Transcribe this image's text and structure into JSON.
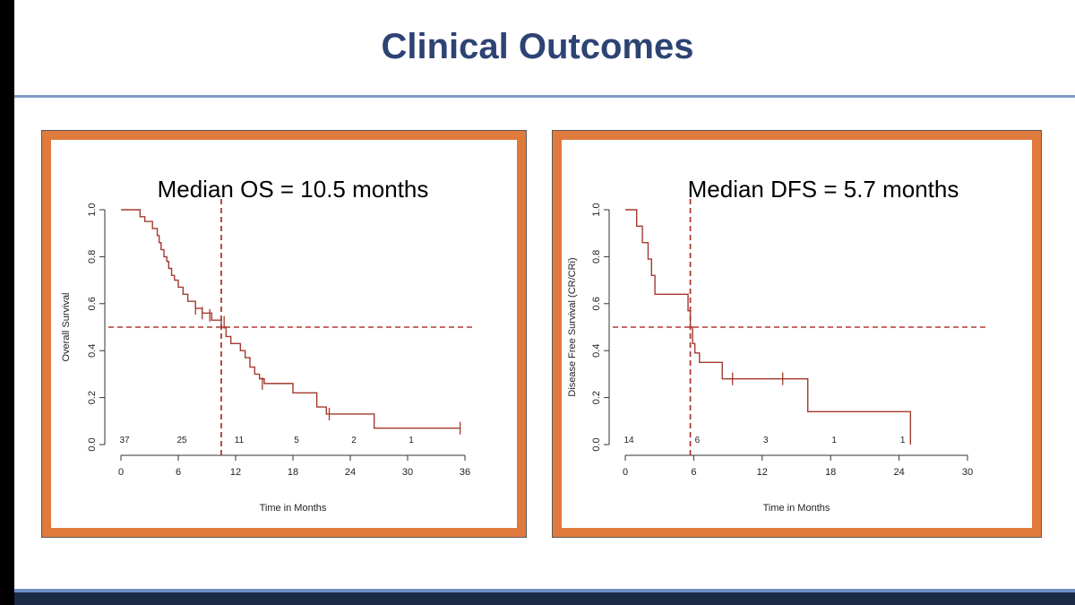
{
  "slide": {
    "title": "Clinical Outcomes"
  },
  "colors": {
    "title": "#2d4373",
    "frame": "#e07a3c",
    "curve": "#a33a2e",
    "median_line": "#b03a32"
  },
  "chart_data": [
    {
      "type": "line",
      "title": "Median OS = 10.5 months",
      "xlabel": "Time in Months",
      "ylabel": "Overall Survival",
      "xlim": [
        0,
        36
      ],
      "ylim": [
        0,
        1
      ],
      "xticks": [
        0,
        6,
        12,
        18,
        24,
        30,
        36
      ],
      "yticks": [
        "0.0",
        "0.2",
        "0.4",
        "0.6",
        "0.8",
        "1.0"
      ],
      "median": 10.5,
      "reference_y": 0.5,
      "at_risk": [
        {
          "x": 0,
          "n": "37"
        },
        {
          "x": 6,
          "n": "25"
        },
        {
          "x": 12,
          "n": "11"
        },
        {
          "x": 18,
          "n": "5"
        },
        {
          "x": 24,
          "n": "2"
        },
        {
          "x": 30,
          "n": "1"
        }
      ],
      "x": [
        0,
        2.0,
        2.5,
        3.3,
        3.8,
        4.0,
        4.2,
        4.5,
        4.8,
        5.0,
        5.3,
        5.6,
        6.0,
        6.5,
        7.0,
        7.8,
        8.5,
        9.5,
        10.5,
        11.0,
        11.5,
        12.5,
        13.0,
        13.5,
        14.0,
        14.5,
        15.0,
        15.5,
        17.0,
        18.0,
        19.5,
        20.5,
        21.5,
        24.0,
        26.5,
        35.5
      ],
      "y": [
        1.0,
        0.97,
        0.95,
        0.92,
        0.89,
        0.86,
        0.83,
        0.8,
        0.78,
        0.75,
        0.72,
        0.7,
        0.67,
        0.64,
        0.61,
        0.58,
        0.56,
        0.53,
        0.5,
        0.46,
        0.43,
        0.4,
        0.37,
        0.33,
        0.3,
        0.28,
        0.26,
        0.26,
        0.26,
        0.22,
        0.22,
        0.16,
        0.13,
        0.13,
        0.07,
        0.07
      ],
      "censor_marks": [
        [
          7.8,
          0.58
        ],
        [
          8.5,
          0.56
        ],
        [
          9.3,
          0.55
        ],
        [
          10.8,
          0.52
        ],
        [
          14.8,
          0.26
        ],
        [
          21.8,
          0.13
        ],
        [
          35.5,
          0.07
        ]
      ]
    },
    {
      "type": "line",
      "title": "Median DFS = 5.7 months",
      "xlabel": "Time in Months",
      "ylabel": "Disease Free Survival (CR/CRi)",
      "xlim": [
        0,
        30
      ],
      "ylim": [
        0,
        1
      ],
      "xticks": [
        0,
        6,
        12,
        18,
        24,
        30
      ],
      "yticks": [
        "0.0",
        "0.2",
        "0.4",
        "0.6",
        "0.8",
        "1.0"
      ],
      "median": 5.7,
      "reference_y": 0.5,
      "at_risk": [
        {
          "x": 0,
          "n": "14"
        },
        {
          "x": 6,
          "n": "6"
        },
        {
          "x": 12,
          "n": "3"
        },
        {
          "x": 18,
          "n": "1"
        },
        {
          "x": 24,
          "n": "1"
        }
      ],
      "x": [
        0,
        1.0,
        1.5,
        2.0,
        2.3,
        2.6,
        5.5,
        5.7,
        5.9,
        6.1,
        6.5,
        8.5,
        16.0,
        25.0
      ],
      "y": [
        1.0,
        0.93,
        0.86,
        0.79,
        0.72,
        0.64,
        0.57,
        0.5,
        0.43,
        0.39,
        0.35,
        0.28,
        0.14,
        0.0
      ],
      "censor_marks": [
        [
          9.4,
          0.28
        ],
        [
          13.8,
          0.28
        ]
      ]
    }
  ]
}
